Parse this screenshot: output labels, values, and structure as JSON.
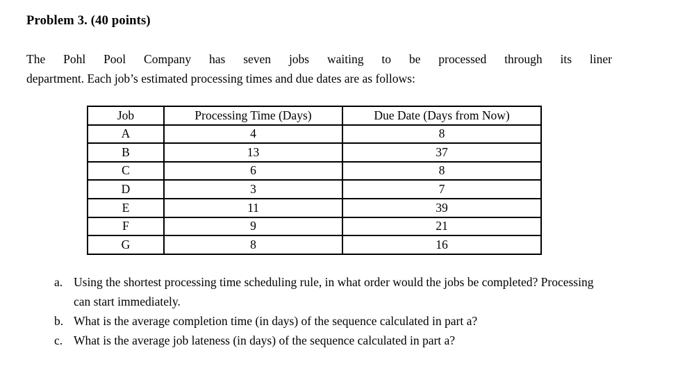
{
  "document": {
    "title": "Problem 3. (40 points)",
    "intro_line1": "The Pohl Pool Company has seven jobs waiting to be processed through its liner",
    "intro_line2": "department. Each job’s estimated processing times and due dates are as follows:"
  },
  "table": {
    "headers": [
      "Job",
      "Processing Time (Days)",
      "Due Date (Days from Now)"
    ],
    "rows": [
      [
        "A",
        "4",
        "8"
      ],
      [
        "B",
        "13",
        "37"
      ],
      [
        "C",
        "6",
        "8"
      ],
      [
        "D",
        "3",
        "7"
      ],
      [
        "E",
        "11",
        "39"
      ],
      [
        "F",
        "9",
        "21"
      ],
      [
        "G",
        "8",
        "16"
      ]
    ]
  },
  "questions": [
    {
      "label": "a.",
      "text": "Using the shortest processing time scheduling rule, in what order would the jobs be completed? Processing can start immediately."
    },
    {
      "label": "b.",
      "text": "What is the average completion time (in days) of the sequence calculated in part a?"
    },
    {
      "label": "c.",
      "text": "What is the average job lateness (in days) of the sequence calculated in part a?"
    }
  ],
  "colors": {
    "text": "#000000",
    "background": "#ffffff",
    "table_border": "#000000"
  }
}
